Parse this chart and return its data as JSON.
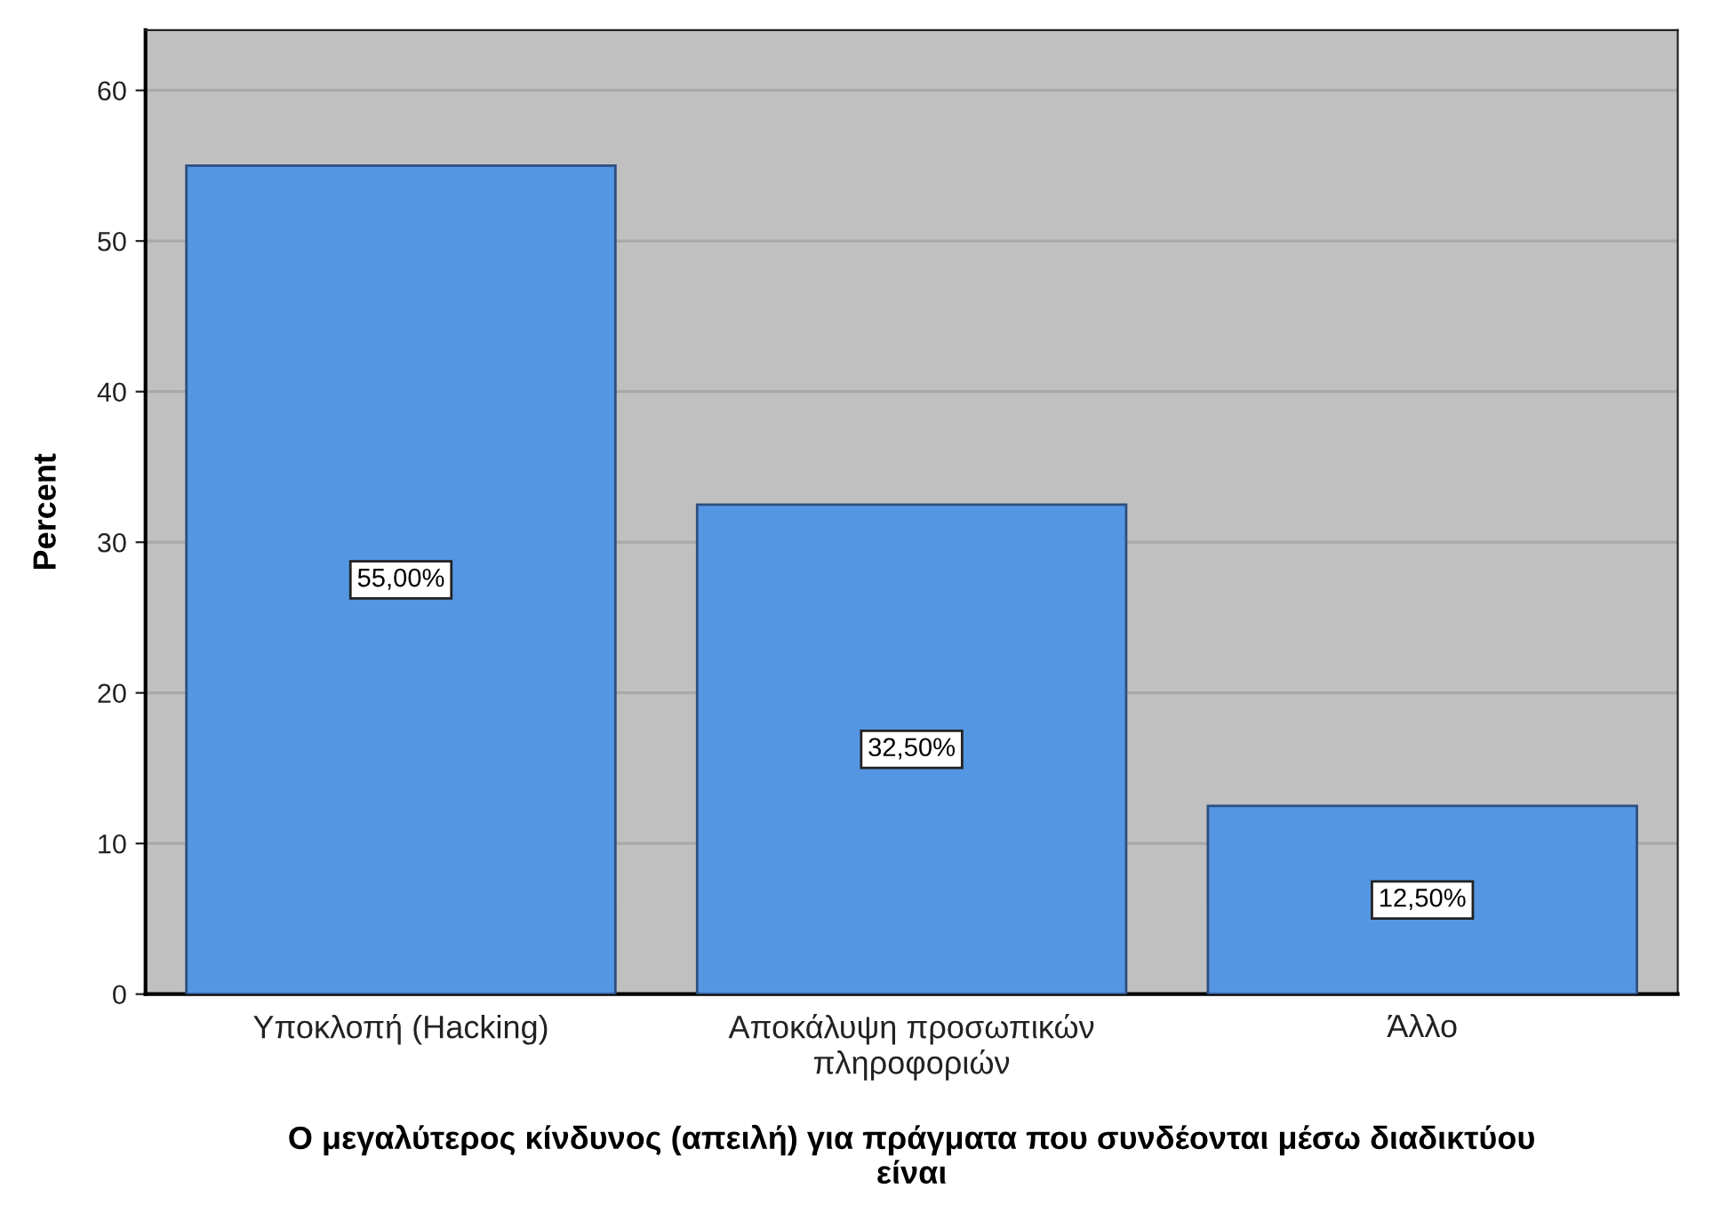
{
  "chart_data": {
    "type": "bar",
    "xlabel": "Ο μεγαλύτερος κίνδυνος (απειλή) για πράγματα που συνδέονται μέσω διαδικτύου\nείναι",
    "ylabel": "Percent",
    "categories": [
      "Υποκλοπή (Hacking)",
      "Αποκάλυψη προσωπικών\nπληροφοριών",
      "Άλλο"
    ],
    "values": [
      55,
      32.5,
      12.5
    ],
    "color": "#5596e3",
    "value_labels": [
      "55,00%",
      "32,50%",
      "12,50%"
    ],
    "ylim": [
      0,
      64
    ],
    "yticks": [
      0,
      10,
      20,
      30,
      40,
      50,
      60
    ],
    "grid": "y"
  }
}
